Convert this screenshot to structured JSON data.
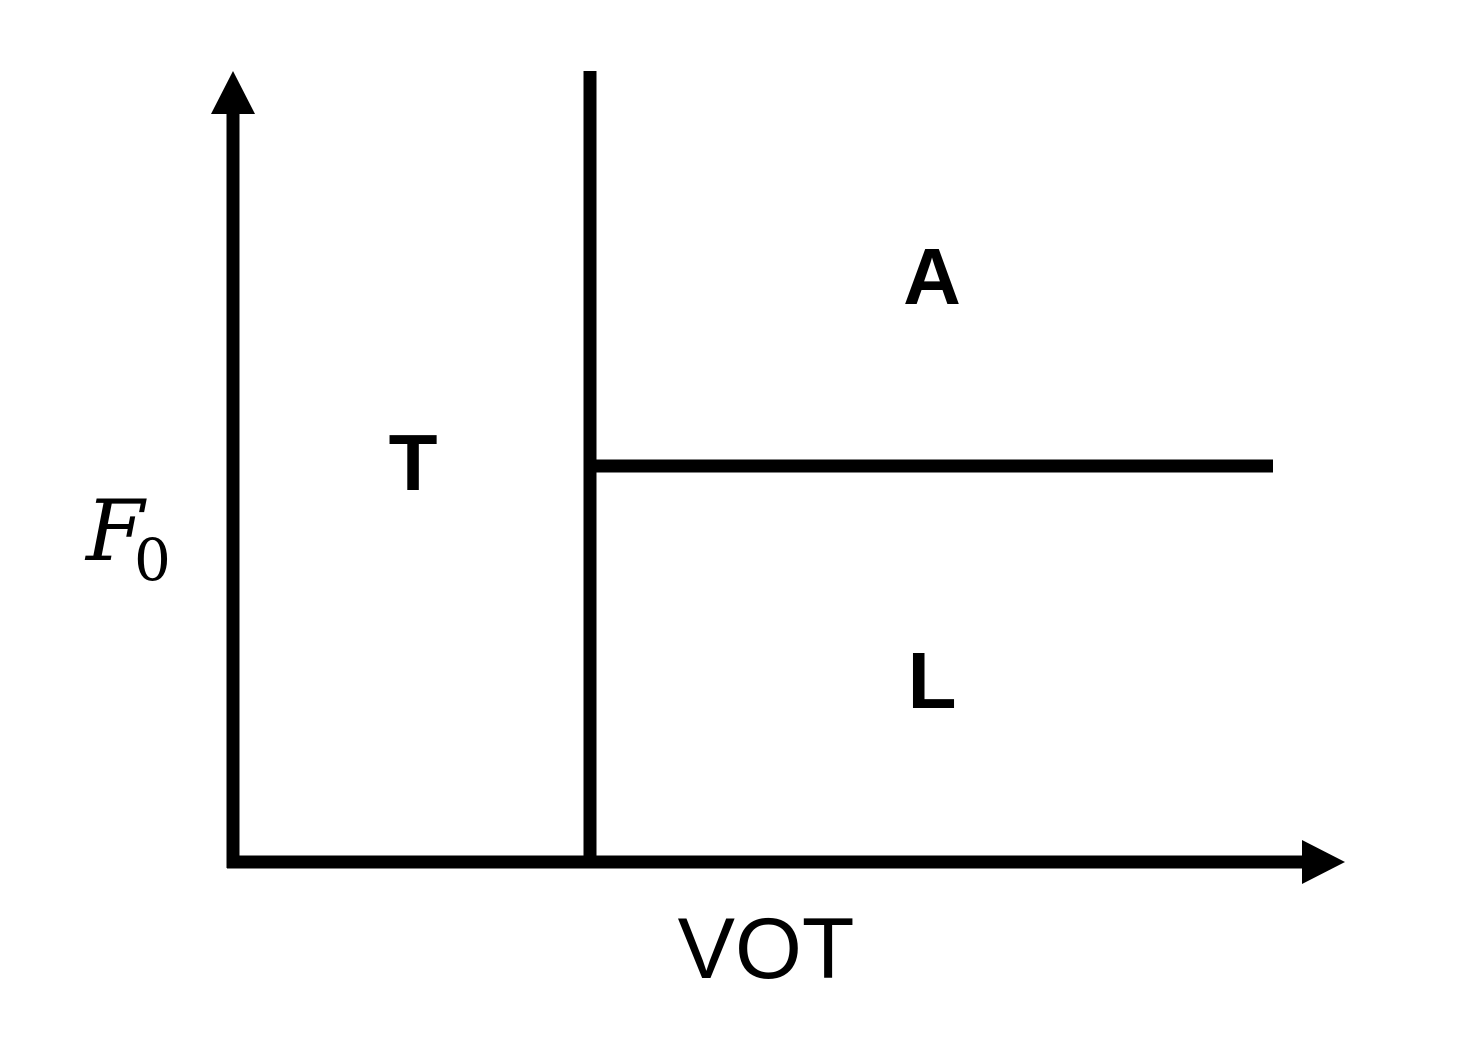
{
  "axes": {
    "x_label": "VOT",
    "y_label_main": "F",
    "y_label_subscript": "0"
  },
  "regions": {
    "left": "T",
    "upper_right": "A",
    "lower_right": "L"
  },
  "colors": {
    "stroke": "#000000",
    "background": "#ffffff"
  }
}
